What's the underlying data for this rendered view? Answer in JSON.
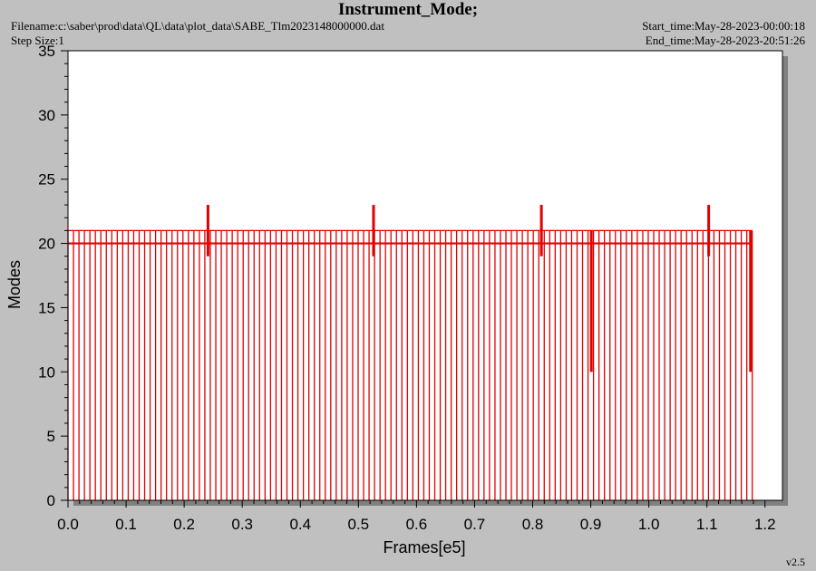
{
  "header": {
    "title": "Instrument_Mode;",
    "filename": "Filename:c:\\saber\\prod\\data\\QL\\data\\plot_data\\SABE_Tlm2023148000000.dat",
    "step_size": "Step Size:1",
    "start_time": "Start_time:May-28-2023-00:00:18",
    "end_time": "End_time:May-28-2023-20:51:26"
  },
  "footer": {
    "version": "v2.5"
  },
  "colors": {
    "series": "#e00000",
    "plot_bg": "#ffffff",
    "page_bg": "#c0c0c0",
    "shadow": "#808080"
  },
  "chart_data": {
    "type": "line",
    "title": "Instrument_Mode;",
    "xlabel": "Frames[e5]",
    "ylabel": "Modes",
    "xlim": [
      0.0,
      1.23
    ],
    "ylim": [
      0,
      35
    ],
    "xticks": [
      "0.0",
      "0.1",
      "0.2",
      "0.3",
      "0.4",
      "0.5",
      "0.6",
      "0.7",
      "0.8",
      "0.9",
      "1.0",
      "1.1",
      "1.2"
    ],
    "yticks": [
      "0",
      "5",
      "10",
      "15",
      "20",
      "25",
      "30",
      "35"
    ],
    "grid": false,
    "series": [
      {
        "x_start": 0.0,
        "x_end": 1.178,
        "baseline_mode": 20,
        "high_mode": 21,
        "low_mode": 0,
        "pulse_count": 125,
        "spikes": [
          {
            "x": 0.241,
            "value": 23
          },
          {
            "x": 0.526,
            "value": 23
          },
          {
            "x": 0.815,
            "value": 23
          },
          {
            "x": 1.103,
            "value": 23
          }
        ],
        "partial_drops": [
          {
            "x": 0.901,
            "value": 10
          },
          {
            "x": 1.175,
            "value": 10
          }
        ]
      }
    ]
  }
}
